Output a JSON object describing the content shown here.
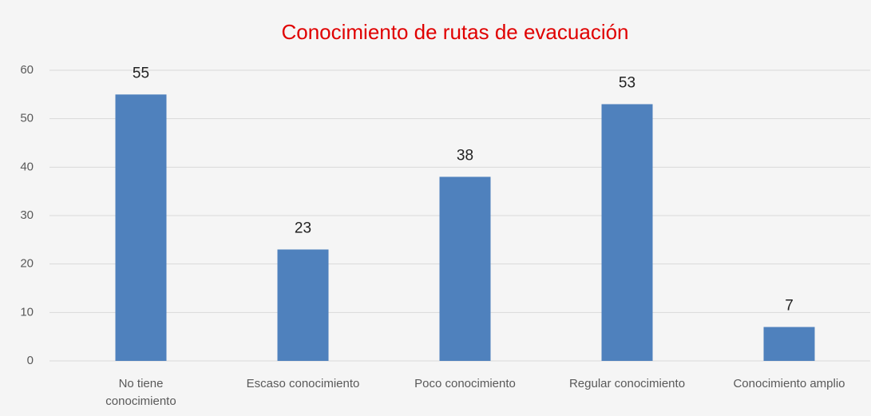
{
  "chart_data": {
    "type": "bar",
    "title": "Conocimiento de rutas de evacuación",
    "categories": [
      "No tiene conocimiento",
      "Escaso conocimiento",
      "Poco conocimiento",
      "Regular conocimiento",
      "Conocimiento amplio"
    ],
    "values": [
      55,
      23,
      38,
      53,
      7
    ],
    "color": "#4f81bd",
    "ylim": [
      0,
      60
    ],
    "yticks": [
      0,
      10,
      20,
      30,
      40,
      50,
      60
    ],
    "grid": true
  }
}
